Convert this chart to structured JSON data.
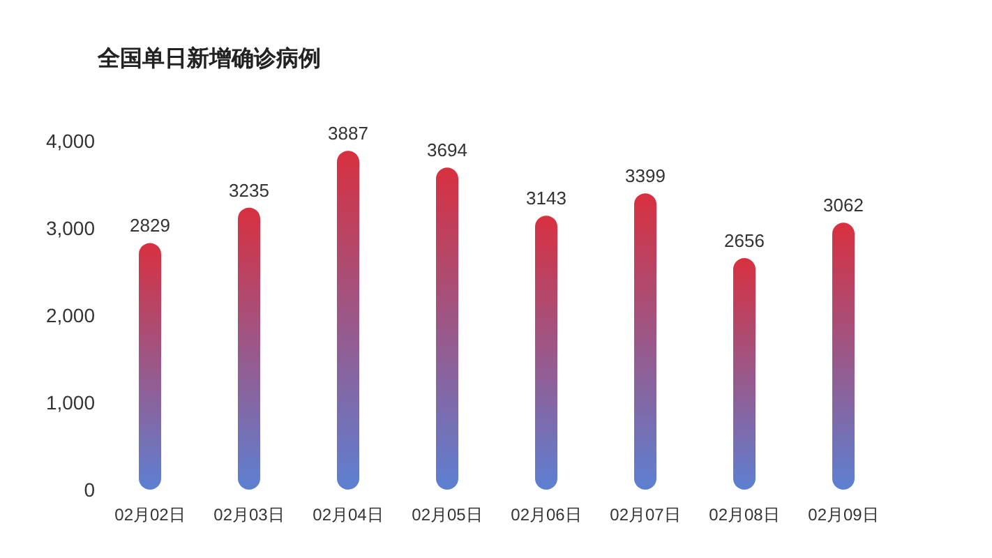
{
  "chart_data": {
    "type": "bar",
    "title": "全国单日新增确诊病例",
    "categories": [
      "02月02日",
      "02月03日",
      "02月04日",
      "02月05日",
      "02月06日",
      "02月07日",
      "02月08日",
      "02月09日"
    ],
    "values": [
      2829,
      3235,
      3887,
      3694,
      3143,
      3399,
      2656,
      3062
    ],
    "color": "#d8303f",
    "ylim": [
      0,
      4000
    ],
    "yticks": [
      {
        "value": 0,
        "label": "0"
      },
      {
        "value": 1000,
        "label": "1,000"
      },
      {
        "value": 2000,
        "label": "2,000"
      },
      {
        "value": 3000,
        "label": "3,000"
      },
      {
        "value": 4000,
        "label": "4,000"
      }
    ],
    "grid": false,
    "data_labels": true
  }
}
